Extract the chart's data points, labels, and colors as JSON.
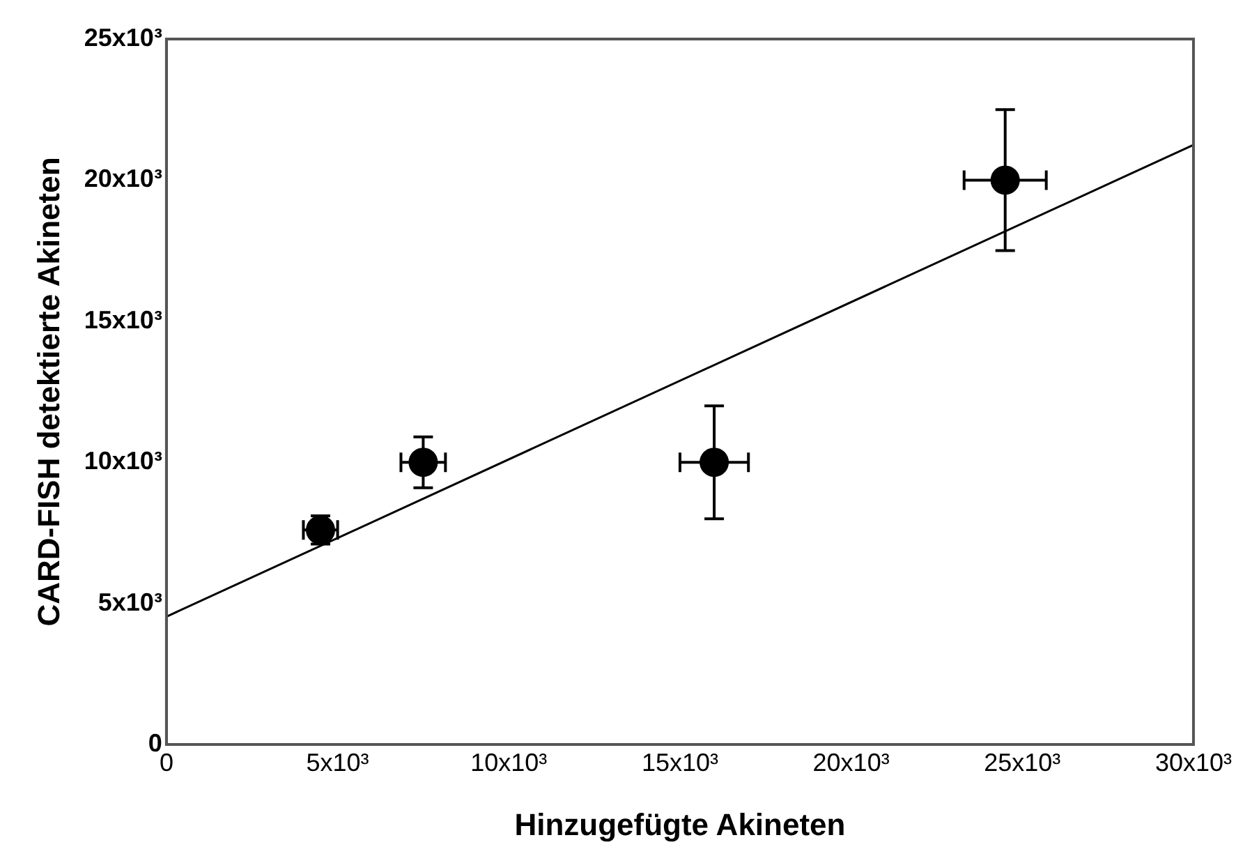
{
  "chart_data": {
    "type": "scatter",
    "xlabel": "Hinzugefügte Akineten",
    "ylabel": "CARD-FISH detektierte Akineten",
    "xlim": [
      0,
      30000
    ],
    "ylim": [
      0,
      25000
    ],
    "xticks": [
      0,
      {
        "value": 5000,
        "label": "5x10³"
      },
      {
        "value": 10000,
        "label": "10x10³"
      },
      {
        "value": 15000,
        "label": "15x10³"
      },
      {
        "value": 20000,
        "label": "20x10³"
      },
      {
        "value": 25000,
        "label": "25x10³"
      },
      {
        "value": 30000,
        "label": "30x10³"
      }
    ],
    "yticks": [
      0,
      {
        "value": 5000,
        "label": "5x10³"
      },
      {
        "value": 10000,
        "label": "10x10³"
      },
      {
        "value": 15000,
        "label": "15x10³"
      },
      {
        "value": 20000,
        "label": "20x10³"
      },
      {
        "value": 25000,
        "label": "25x10³"
      }
    ],
    "grid": false,
    "legend": false,
    "series": [
      {
        "color": "#000000",
        "marker": "circle",
        "x": [
          4500,
          7500,
          16000,
          24500
        ],
        "values": [
          7600,
          10000,
          10000,
          20000
        ],
        "errors": [
          500,
          900,
          2000,
          2500
        ],
        "xerrors": [
          500,
          650,
          1000,
          1200
        ]
      },
      {
        "type": "line",
        "color": "#000000",
        "marker": "none",
        "line_style": "solid",
        "x": [
          0,
          30000
        ],
        "values": [
          4530,
          21250
        ]
      }
    ]
  }
}
